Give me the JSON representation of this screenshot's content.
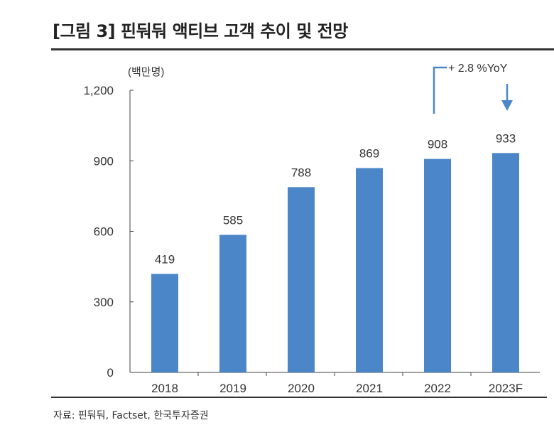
{
  "title": "[그림 3] 핀둬둬 액티브 고객 추이 및 전망",
  "source": "자료: 핀둬둬, Factset, 한국투자증권",
  "chart_data": {
    "type": "bar",
    "title": "",
    "ylabel": "(백만명)",
    "xlabel": "",
    "categories": [
      "2018",
      "2019",
      "2020",
      "2021",
      "2022",
      "2023F"
    ],
    "values": [
      419,
      585,
      788,
      869,
      908,
      933
    ],
    "ylim": [
      0,
      1200
    ],
    "yticks": [
      0,
      300,
      600,
      900,
      1200
    ],
    "ytick_labels": [
      "0",
      "300",
      "600",
      "900",
      "1,200"
    ],
    "grid": false,
    "bar_color": "#4a86c8",
    "annotation": {
      "text": "+ 2.8 %YoY",
      "from": "2022",
      "to": "2023F"
    }
  }
}
